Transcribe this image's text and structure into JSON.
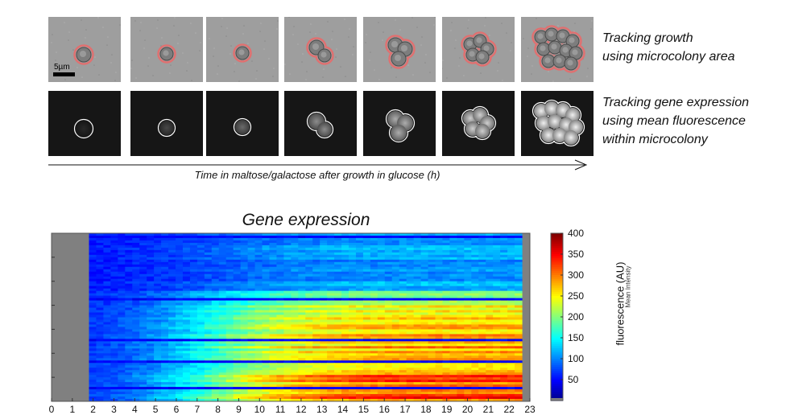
{
  "figure": {
    "scale_bar_label": "5µm",
    "caption_growth": "Tracking growth\nusing microcolony area",
    "caption_expression": "Tracking gene expression\nusing mean fluorescence\nwithin microcolony",
    "time_axis_label": "Time in maltose/galactose after growth in glucose (h)",
    "frame_count": 7,
    "colors": {
      "outline_brightfield": "#e07070",
      "outline_fluorescence": "#ffffff"
    }
  },
  "chart_data": {
    "type": "heatmap",
    "title": "Gene expression",
    "xlabel": "",
    "x_ticks": [
      0,
      1,
      2,
      3,
      4,
      5,
      6,
      7,
      8,
      9,
      10,
      11,
      12,
      13,
      14,
      15,
      16,
      17,
      18,
      19,
      20,
      21,
      22,
      23
    ],
    "xlim": [
      0,
      23
    ],
    "data_xlim": [
      1.8,
      23
    ],
    "colorbar": {
      "label": "fluorescence (AU)",
      "label_overlay": "Mean Intensity",
      "ticks": [
        50,
        100,
        150,
        200,
        250,
        300,
        350,
        400
      ],
      "range": [
        0,
        400
      ],
      "colormap": "jet"
    }
  }
}
